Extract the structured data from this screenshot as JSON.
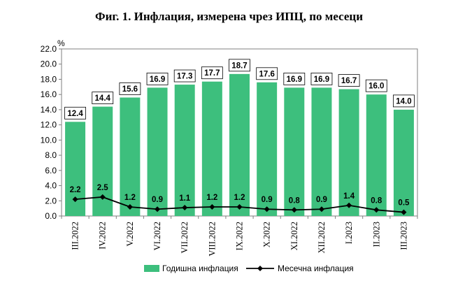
{
  "chart_data": {
    "type": "bar",
    "title": "Фиг. 1. Инфлация, измерена чрез ИПЦ, по месеци",
    "y_unit": "%",
    "categories": [
      "III.2022",
      "IV.2022",
      "V.2022",
      "VI.2022",
      "VII.2022",
      "VIII.2022",
      "IX.2022",
      "X.2022",
      "XI.2022",
      "XII.2022",
      "I.2023",
      "II.2023",
      "III.2023"
    ],
    "series": [
      {
        "name": "Годишна инфлация",
        "kind": "bar",
        "color": "#3dbf7d",
        "values": [
          12.4,
          14.4,
          15.6,
          16.9,
          17.3,
          17.7,
          18.7,
          17.6,
          16.9,
          16.9,
          16.7,
          16.0,
          14.0
        ],
        "labels": [
          "12.4",
          "14.4",
          "15.6",
          "16.9",
          "17.3",
          "17.7",
          "18.7",
          "17.6",
          "16.9",
          "16.9",
          "16.7",
          "16.0",
          "14.0"
        ]
      },
      {
        "name": "Месечна инфлация",
        "kind": "line",
        "color": "#000000",
        "values": [
          2.2,
          2.5,
          1.2,
          0.9,
          1.1,
          1.2,
          1.2,
          0.9,
          0.8,
          0.9,
          1.4,
          0.8,
          0.5
        ],
        "labels": [
          "2.2",
          "2.5",
          "1.2",
          "0.9",
          "1.1",
          "1.2",
          "1.2",
          "0.9",
          "0.8",
          "0.9",
          "1.4",
          "0.8",
          "0.5"
        ]
      }
    ],
    "ylim": [
      0,
      22
    ],
    "yticks": [
      "0.0",
      "2.0",
      "4.0",
      "6.0",
      "8.0",
      "10.0",
      "12.0",
      "14.0",
      "16.0",
      "18.0",
      "20.0",
      "22.0"
    ],
    "grid": false,
    "legend_position": "bottom"
  }
}
